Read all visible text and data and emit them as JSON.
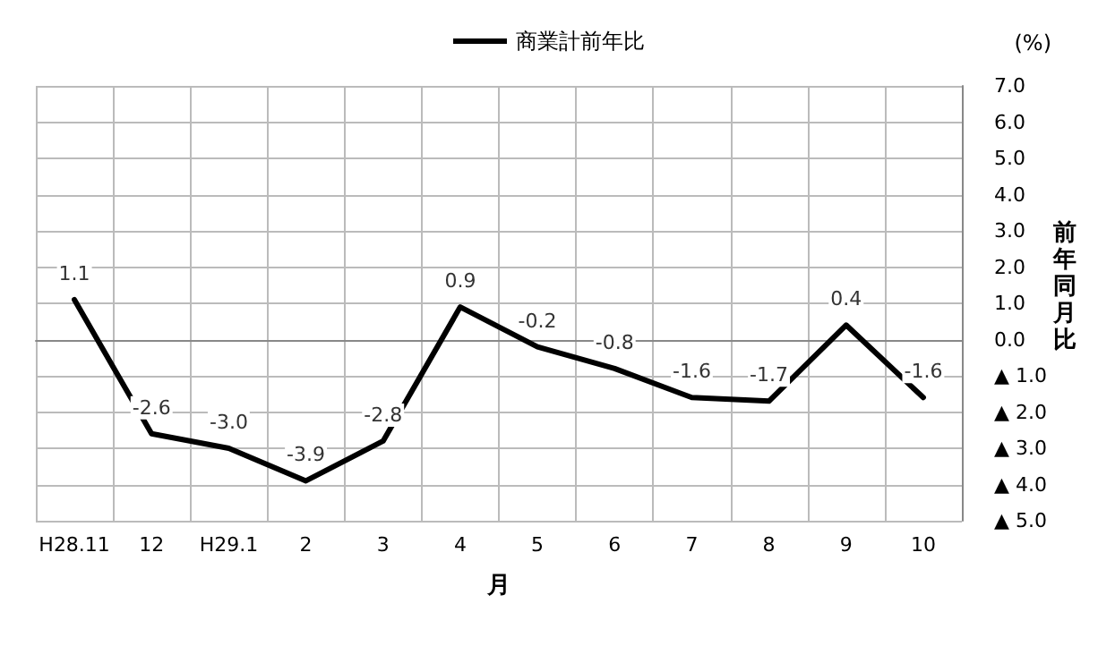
{
  "chart_data": {
    "type": "line",
    "xlabel": "月",
    "ylabel": "前年同月比",
    "annotations": [
      "(%)"
    ],
    "categories": [
      "H28.11",
      "12",
      "H29.1",
      "2",
      "3",
      "4",
      "5",
      "6",
      "7",
      "8",
      "9",
      "10"
    ],
    "series": [
      {
        "name": "商業計前年比",
        "color": "#000000",
        "values": [
          1.1,
          -2.6,
          -3.0,
          -3.9,
          -2.8,
          0.9,
          -0.2,
          -0.8,
          -1.6,
          -1.7,
          0.4,
          -1.6
        ],
        "value_labels": [
          "1.1",
          "-2.6",
          "-3.0",
          "-3.9",
          "-2.8",
          "0.9",
          "-0.2",
          "-0.8",
          "-1.6",
          "-1.7",
          "0.4",
          "-1.6"
        ]
      }
    ],
    "ylim": [
      -5,
      7
    ],
    "yticks": [
      {
        "value": -5,
        "label": "▲ 5.0"
      },
      {
        "value": -4,
        "label": "▲ 4.0"
      },
      {
        "value": -3,
        "label": "▲ 3.0"
      },
      {
        "value": -2,
        "label": "▲ 2.0"
      },
      {
        "value": -1,
        "label": "▲ 1.0"
      },
      {
        "value": 0,
        "label": "0.0"
      },
      {
        "value": 1,
        "label": "1.0"
      },
      {
        "value": 2,
        "label": "2.0"
      },
      {
        "value": 3,
        "label": "3.0"
      },
      {
        "value": 4,
        "label": "4.0"
      },
      {
        "value": 5,
        "label": "5.0"
      },
      {
        "value": 6,
        "label": "6.0"
      },
      {
        "value": 7,
        "label": "7.0"
      }
    ],
    "grid": true,
    "legend": "top",
    "marker": "none",
    "line_style": "solid"
  }
}
